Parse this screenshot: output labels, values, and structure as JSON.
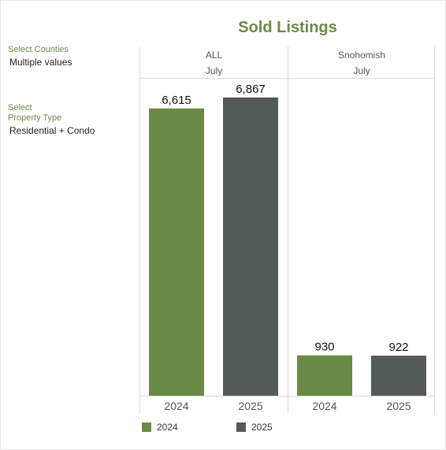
{
  "title": "Sold Listings",
  "filters": {
    "counties_label": "Select Counties",
    "counties_value": "Multiple values",
    "property_label_line1": "Select",
    "property_label_line2": "Property Type",
    "property_value": "Residential + Condo"
  },
  "colors": {
    "2024": "#6b8a47",
    "2025": "#525b58"
  },
  "chart_data": {
    "type": "bar",
    "title": "Sold Listings",
    "panels": [
      {
        "region": "ALL",
        "month": "July",
        "categories": [
          "2024",
          "2025"
        ],
        "values": [
          6615,
          6867
        ],
        "labels": [
          "6,615",
          "6,867"
        ]
      },
      {
        "region": "Snohomish",
        "month": "July",
        "categories": [
          "2024",
          "2025"
        ],
        "values": [
          930,
          922
        ],
        "labels": [
          "930",
          "922"
        ]
      }
    ],
    "ylim": [
      0,
      7300
    ],
    "legend": {
      "position": "bottom-left",
      "entries": [
        "2024",
        "2025"
      ]
    },
    "grid": false
  }
}
